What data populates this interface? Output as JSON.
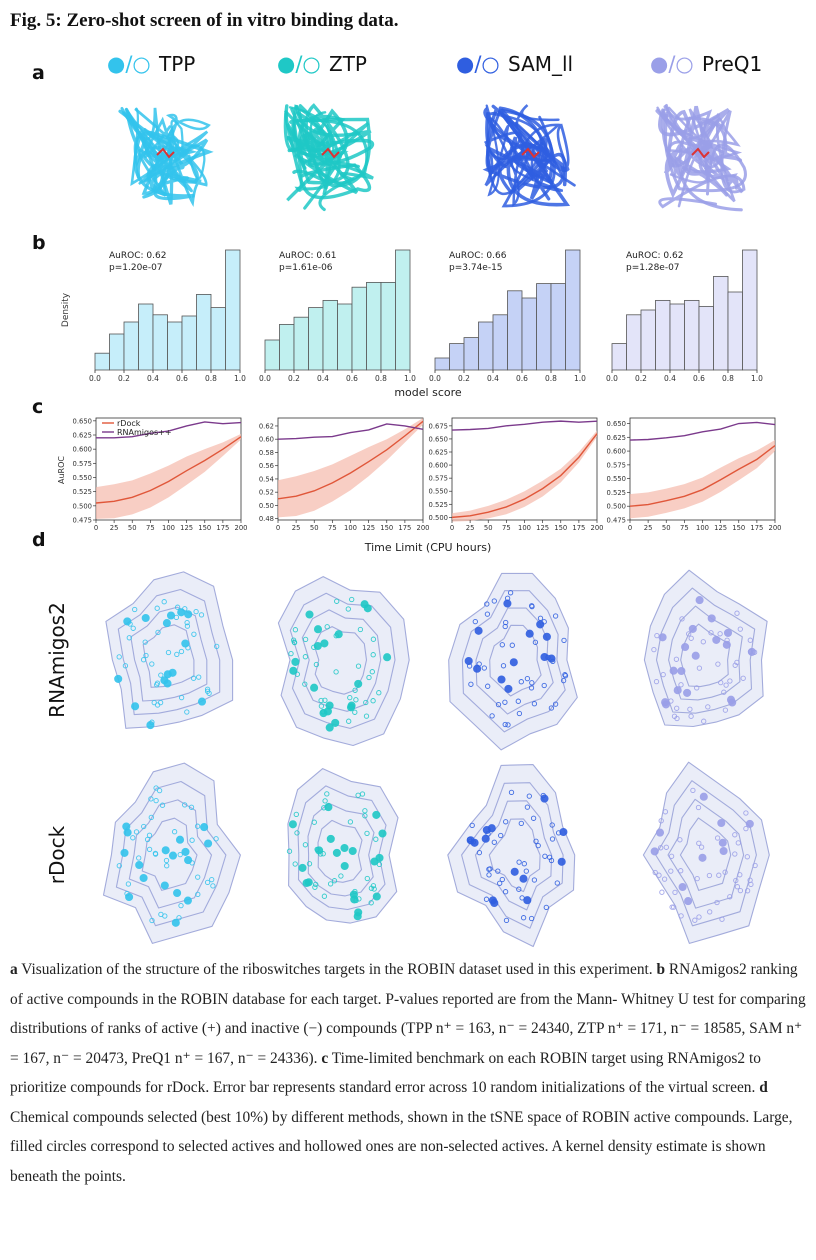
{
  "figure": {
    "title": "Fig. 5: Zero-shot screen of in vitro binding data.",
    "panel_labels": [
      "a",
      "b",
      "c",
      "d"
    ],
    "colors": {
      "TPP": "#33c3ec",
      "ZTP": "#1fc8c6",
      "SAM_II": "#2f5ee0",
      "PreQ1": "#9a9fe8",
      "rdock": "#e0573a",
      "rnamigos": "#7b3a8c"
    },
    "panel_a": {
      "legend_marker": "●/○",
      "targets": [
        "TPP",
        "ZTP",
        "SAM_II",
        "PreQ1"
      ]
    }
  },
  "chart_data": [
    {
      "type": "bar",
      "panel": "b",
      "xlabel": "model score",
      "ylabel": "Density",
      "xlim": [
        0,
        1
      ],
      "xticks": [
        "0.0",
        "0.2",
        "0.4",
        "0.6",
        "0.8",
        "1.0"
      ],
      "bins": 10,
      "series": [
        {
          "name": "TPP",
          "values": [
            0.14,
            0.3,
            0.4,
            0.55,
            0.46,
            0.4,
            0.45,
            0.63,
            0.52,
            1.0
          ],
          "annotation": [
            "AuROC: 0.62",
            "p=1.20e-07"
          ]
        },
        {
          "name": "ZTP",
          "values": [
            0.25,
            0.38,
            0.44,
            0.52,
            0.58,
            0.55,
            0.69,
            0.73,
            0.73,
            1.0
          ],
          "annotation": [
            "AuROC: 0.61",
            "p=1.61e-06"
          ]
        },
        {
          "name": "SAM_II",
          "values": [
            0.1,
            0.22,
            0.27,
            0.4,
            0.46,
            0.66,
            0.6,
            0.72,
            0.72,
            1.0
          ],
          "annotation": [
            "AuROC: 0.66",
            "p=3.74e-15"
          ]
        },
        {
          "name": "PreQ1",
          "values": [
            0.22,
            0.46,
            0.5,
            0.58,
            0.55,
            0.58,
            0.53,
            0.78,
            0.65,
            1.0
          ],
          "annotation": [
            "AuROC: 0.62",
            "p=1.28e-07"
          ]
        }
      ]
    },
    {
      "type": "line",
      "panel": "c",
      "xlabel": "Time Limit (CPU hours)",
      "ylabel": "AuROC",
      "xlim": [
        0,
        200
      ],
      "xticks": [
        0,
        25,
        50,
        75,
        100,
        125,
        150,
        175,
        200
      ],
      "legend": [
        "rDock",
        "RNAmigos++"
      ],
      "legend_position": "top-left",
      "x": [
        0,
        25,
        50,
        75,
        100,
        125,
        150,
        175,
        200
      ],
      "subplots": [
        {
          "ylim": [
            0.475,
            0.655
          ],
          "yticks": [
            "0.650",
            "0.625",
            "0.600",
            "0.575",
            "0.550",
            "0.525",
            "0.500",
            "0.475"
          ],
          "rdock": [
            0.505,
            0.508,
            0.515,
            0.527,
            0.543,
            0.562,
            0.58,
            0.6,
            0.622
          ],
          "band": [
            0.028,
            0.03,
            0.03,
            0.03,
            0.028,
            0.025,
            0.02,
            0.012,
            0.005
          ],
          "rnamigos": [
            0.62,
            0.62,
            0.622,
            0.628,
            0.632,
            0.641,
            0.648,
            0.645,
            0.647
          ]
        },
        {
          "ylim": [
            0.478,
            0.632
          ],
          "yticks": [
            "0.62",
            "0.60",
            "0.58",
            "0.56",
            "0.54",
            "0.52",
            "0.50",
            "0.48"
          ],
          "rdock": [
            0.51,
            0.514,
            0.522,
            0.534,
            0.549,
            0.566,
            0.584,
            0.605,
            0.627
          ],
          "band": [
            0.028,
            0.03,
            0.03,
            0.028,
            0.026,
            0.022,
            0.016,
            0.01,
            0.005
          ],
          "rnamigos": [
            0.6,
            0.601,
            0.603,
            0.604,
            0.61,
            0.614,
            0.623,
            0.62,
            0.615
          ]
        },
        {
          "ylim": [
            0.495,
            0.69
          ],
          "yticks": [
            "0.675",
            "0.650",
            "0.625",
            "0.600",
            "0.575",
            "0.550",
            "0.525",
            "0.500"
          ],
          "rdock": [
            0.5,
            0.503,
            0.51,
            0.52,
            0.535,
            0.555,
            0.58,
            0.615,
            0.66
          ],
          "band": [
            0.008,
            0.01,
            0.012,
            0.014,
            0.015,
            0.015,
            0.013,
            0.01,
            0.006
          ],
          "rnamigos": [
            0.667,
            0.668,
            0.67,
            0.675,
            0.678,
            0.682,
            0.684,
            0.682,
            0.684
          ]
        },
        {
          "ylim": [
            0.475,
            0.66
          ],
          "yticks": [
            "0.650",
            "0.625",
            "0.600",
            "0.575",
            "0.550",
            "0.525",
            "0.500",
            "0.475"
          ],
          "rdock": [
            0.5,
            0.503,
            0.51,
            0.518,
            0.53,
            0.548,
            0.567,
            0.585,
            0.61
          ],
          "band": [
            0.022,
            0.022,
            0.022,
            0.022,
            0.022,
            0.022,
            0.02,
            0.016,
            0.01
          ],
          "rnamigos": [
            0.62,
            0.621,
            0.624,
            0.628,
            0.635,
            0.64,
            0.65,
            0.652,
            0.648
          ]
        }
      ]
    },
    {
      "type": "scatter",
      "panel": "d",
      "row_labels": [
        "RNAmigos2",
        "rDock"
      ],
      "columns": [
        "TPP",
        "ZTP",
        "SAM_II",
        "PreQ1"
      ]
    }
  ],
  "caption": {
    "a_lead": "a",
    "a": " Visualization of the structure of the riboswitches targets in the ROBIN dataset used in this experiment. ",
    "b_lead": "b",
    "b": " RNAmigos2 ranking of active compounds in the ROBIN database for each target. P-values reported are from the Mann- Whitney U test for comparing distributions of ranks of active (+) and inactive (−) compounds (TPP n⁺ = 163, n⁻ = 24340, ZTP n⁺ = 171, n⁻ = 18585, SAM n⁺ = 167, n⁻ = 20473, PreQ1 n⁺ = 167, n⁻ = 24336). ",
    "c_lead": "c",
    "c": " Time-limited benchmark on each ROBIN target using RNAmigos2 to prioritize compounds for rDock. Error bar represents standard error across 10 random initializations of the virtual screen. ",
    "d_lead": "d",
    "d": " Chemical compounds selected (best 10%) by different methods, shown in the tSNE space of ROBIN active compounds. Large, filled circles correspond to selected actives and hollowed ones are non-selected actives. A kernel density estimate is shown beneath the points."
  }
}
